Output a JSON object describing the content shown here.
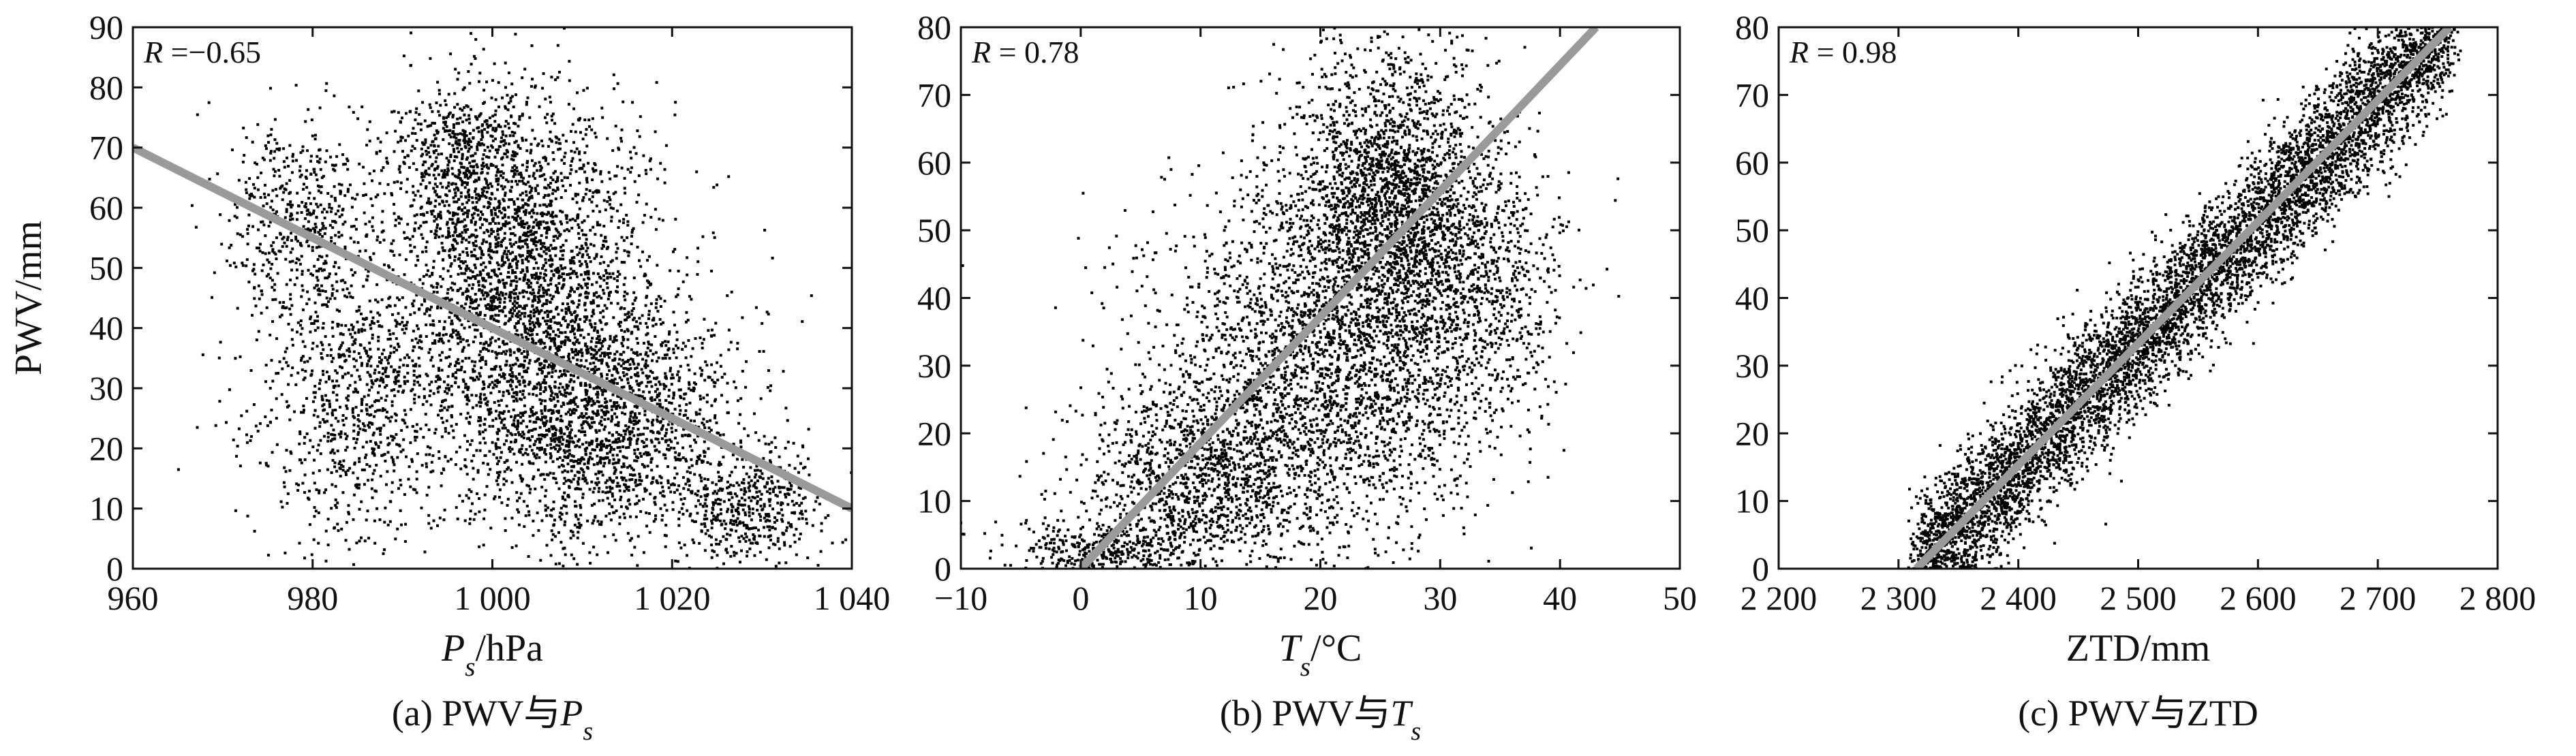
{
  "chart_data": [
    {
      "id": "a",
      "type": "scatter",
      "caption_prefix": "(a) PWV与",
      "caption_var": "P",
      "caption_sub": "s",
      "xlabel_var": "P",
      "xlabel_sub": "s",
      "xlabel_unit": "/hPa",
      "ylabel": "PWV/mm",
      "xlim": [
        960,
        1040
      ],
      "ylim": [
        0,
        90
      ],
      "xticks": [
        960,
        980,
        1000,
        1020,
        1040
      ],
      "xtick_labels": [
        "960",
        "980",
        "1 000",
        "1 020",
        "1 040"
      ],
      "yticks": [
        0,
        10,
        20,
        30,
        40,
        50,
        60,
        70,
        80,
        90
      ],
      "ytick_labels": [
        "0",
        "10",
        "20",
        "30",
        "40",
        "50",
        "60",
        "70",
        "80",
        "90"
      ],
      "annotation_var": "R",
      "annotation_value": " =−0.65",
      "R": -0.65,
      "fit_line": {
        "x": [
          960,
          1040
        ],
        "y": [
          70,
          10
        ]
      },
      "clusters": [
        {
          "cx": 1003,
          "cy": 50,
          "sx": 7,
          "sy": 15,
          "n": 2600
        },
        {
          "cx": 1012,
          "cy": 25,
          "sx": 8,
          "sy": 11,
          "n": 2000
        },
        {
          "cx": 978,
          "cy": 58,
          "sx": 4,
          "sy": 8,
          "n": 500
        },
        {
          "cx": 985,
          "cy": 28,
          "sx": 6,
          "sy": 12,
          "n": 900
        },
        {
          "cx": 1028,
          "cy": 10,
          "sx": 4,
          "sy": 5,
          "n": 450
        },
        {
          "cx": 996,
          "cy": 68,
          "sx": 4,
          "sy": 6,
          "n": 400
        }
      ]
    },
    {
      "id": "b",
      "type": "scatter",
      "caption_prefix": "(b) PWV与",
      "caption_var": "T",
      "caption_sub": "s",
      "xlabel_var": "T",
      "xlabel_sub": "s",
      "xlabel_unit": "/°C",
      "ylabel": "",
      "xlim": [
        -10,
        50
      ],
      "ylim": [
        0,
        80
      ],
      "xticks": [
        -10,
        0,
        10,
        20,
        30,
        40,
        50
      ],
      "xtick_labels": [
        "−10",
        "0",
        "10",
        "20",
        "30",
        "40",
        "50"
      ],
      "yticks": [
        0,
        10,
        20,
        30,
        40,
        50,
        60,
        70,
        80
      ],
      "ytick_labels": [
        "0",
        "10",
        "20",
        "30",
        "40",
        "50",
        "60",
        "70",
        "80"
      ],
      "annotation_var": "R",
      "annotation_value": " = 0.78",
      "R": 0.78,
      "fit_line": {
        "x": [
          0,
          43
        ],
        "y": [
          0,
          80
        ]
      },
      "clusters": [
        {
          "cx": 20,
          "cy": 30,
          "sx": 7,
          "sy": 13,
          "n": 2800
        },
        {
          "cx": 26,
          "cy": 55,
          "sx": 4,
          "sy": 11,
          "n": 2200
        },
        {
          "cx": 10,
          "cy": 13,
          "sx": 5,
          "sy": 7,
          "n": 1100
        },
        {
          "cx": 33,
          "cy": 42,
          "sx": 4,
          "sy": 10,
          "n": 700
        },
        {
          "cx": 2,
          "cy": 3,
          "sx": 4,
          "sy": 2,
          "n": 350
        }
      ]
    },
    {
      "id": "c",
      "type": "scatter",
      "caption_prefix": "(c) PWV与ZTD",
      "caption_var": "",
      "caption_sub": "",
      "xlabel_var": "",
      "xlabel_sub": "",
      "xlabel_unit": "ZTD/mm",
      "ylabel": "",
      "xlim": [
        2200,
        2800
      ],
      "ylim": [
        0,
        80
      ],
      "xticks": [
        2200,
        2300,
        2400,
        2500,
        2600,
        2700,
        2800
      ],
      "xtick_labels": [
        "2 200",
        "2 300",
        "2 400",
        "2 500",
        "2 600",
        "2 700",
        "2 800"
      ],
      "yticks": [
        0,
        10,
        20,
        30,
        40,
        50,
        60,
        70,
        80
      ],
      "ytick_labels": [
        "0",
        "10",
        "20",
        "30",
        "40",
        "50",
        "60",
        "70",
        "80"
      ],
      "annotation_var": "R",
      "annotation_value": " = 0.98",
      "R": 0.98,
      "fit_line": {
        "x": [
          2315,
          2760
        ],
        "y": [
          0,
          80
        ]
      },
      "band": {
        "x0": 2315,
        "x1": 2760,
        "y0": 0,
        "y1": 80,
        "n": 6500,
        "spread": 5
      }
    }
  ]
}
